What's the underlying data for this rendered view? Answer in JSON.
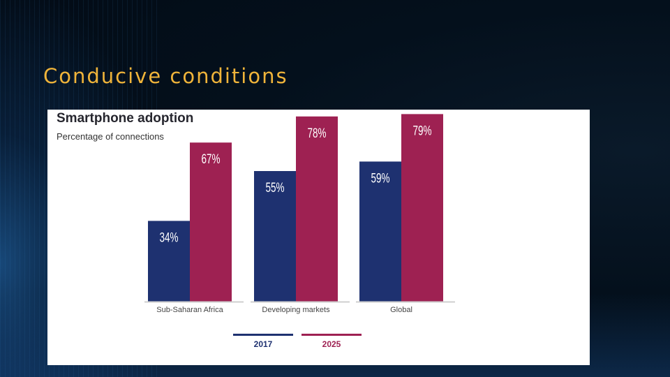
{
  "slide": {
    "title": "Conducive conditions"
  },
  "chart_data": {
    "type": "bar",
    "title": "Smartphone adoption",
    "subtitle": "Percentage of connections",
    "categories": [
      "Sub-Saharan Africa",
      "Developing markets",
      "Global"
    ],
    "series": [
      {
        "name": "2017",
        "values": [
          34,
          55,
          59
        ],
        "labels": [
          "34%",
          "55%",
          "59%"
        ],
        "color": "#1e3170"
      },
      {
        "name": "2025",
        "values": [
          67,
          78,
          79
        ],
        "labels": [
          "67%",
          "78%",
          "79%"
        ],
        "color": "#9e2152"
      }
    ],
    "ylim": [
      0,
      100
    ],
    "legend_position": "bottom-center",
    "grid": false
  }
}
